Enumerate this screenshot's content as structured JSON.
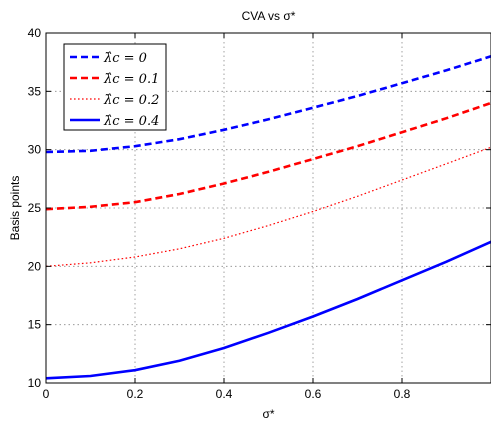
{
  "chart_data": {
    "type": "line",
    "title": "CVA vs σ*",
    "xlabel": "σ*",
    "ylabel": "Basis points",
    "xlim": [
      0,
      1
    ],
    "ylim": [
      10,
      40
    ],
    "xticks": [
      0,
      0.2,
      0.4,
      0.6,
      0.8
    ],
    "xtick_labels": [
      "0",
      "0.2",
      "0.4",
      "0.6",
      "0.8"
    ],
    "yticks": [
      10,
      15,
      20,
      25,
      30,
      35,
      40
    ],
    "ytick_labels": [
      "10",
      "15",
      "20",
      "25",
      "30",
      "35",
      "40"
    ],
    "grid": true,
    "legend_position": "top-left",
    "x": [
      0,
      0.1,
      0.2,
      0.3,
      0.4,
      0.5,
      0.6,
      0.7,
      0.8,
      0.9,
      1.0
    ],
    "series": [
      {
        "name": "λ̂c = 0",
        "color": "#0000ff",
        "style": "dashed",
        "values": [
          29.8,
          29.9,
          30.3,
          30.9,
          31.7,
          32.6,
          33.6,
          34.6,
          35.7,
          36.8,
          38.0
        ]
      },
      {
        "name": "λ̂c = 0.1",
        "color": "#ff0000",
        "style": "dashed",
        "values": [
          24.9,
          25.1,
          25.5,
          26.2,
          27.1,
          28.1,
          29.2,
          30.3,
          31.5,
          32.7,
          34.0
        ]
      },
      {
        "name": "λ̂c = 0.2",
        "color": "#ff0000",
        "style": "dotted",
        "values": [
          20.0,
          20.3,
          20.8,
          21.5,
          22.4,
          23.5,
          24.7,
          26.0,
          27.4,
          28.8,
          30.2
        ]
      },
      {
        "name": "λ̂c = 0.4",
        "color": "#0000ff",
        "style": "solid",
        "values": [
          10.4,
          10.6,
          11.1,
          11.9,
          13.0,
          14.3,
          15.7,
          17.2,
          18.8,
          20.4,
          22.1
        ]
      }
    ]
  }
}
